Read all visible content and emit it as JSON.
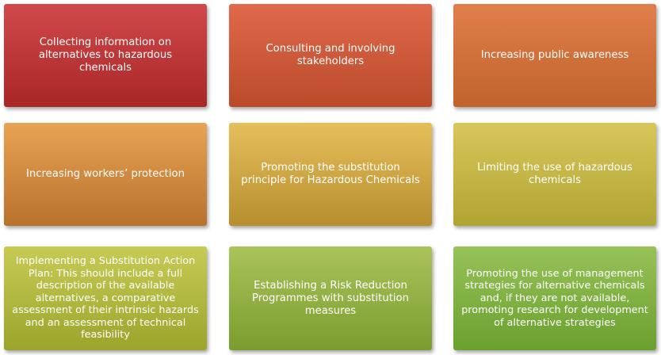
{
  "boxes": [
    {
      "id": "b1",
      "text": "Collecting information on alternatives to hazardous chemicals"
    },
    {
      "id": "b2",
      "text": "Consulting and involving stakeholders"
    },
    {
      "id": "b3",
      "text": "Increasing public awareness"
    },
    {
      "id": "b4",
      "text": "Increasing workers’ protection"
    },
    {
      "id": "b5",
      "text": "Promoting the substitution principle for Hazardous Chemicals"
    },
    {
      "id": "b6",
      "text": "Limiting the use of hazardous chemicals"
    },
    {
      "id": "b7",
      "text": "Implementing a Substitution Action Plan: This should include a full description of the available alternatives, a comparative assessment of their intrinsic hazards and an assessment of technical feasibility"
    },
    {
      "id": "b8",
      "text": "Establishing a  Risk Reduction Programmes with substitution measures"
    },
    {
      "id": "b9",
      "text": "Promoting the use of management strategies for alternative chemicals and, if they are not available, promoting research for development of alternative strategies"
    }
  ],
  "colors": {
    "row1": [
      "#c0393b",
      "#d15a3b",
      "#d2713c"
    ],
    "row2": [
      "#d18b41",
      "#cea744",
      "#c6b647"
    ],
    "row3": [
      "#b3b83f",
      "#93b044",
      "#81b143"
    ],
    "text": "#ffffff"
  }
}
